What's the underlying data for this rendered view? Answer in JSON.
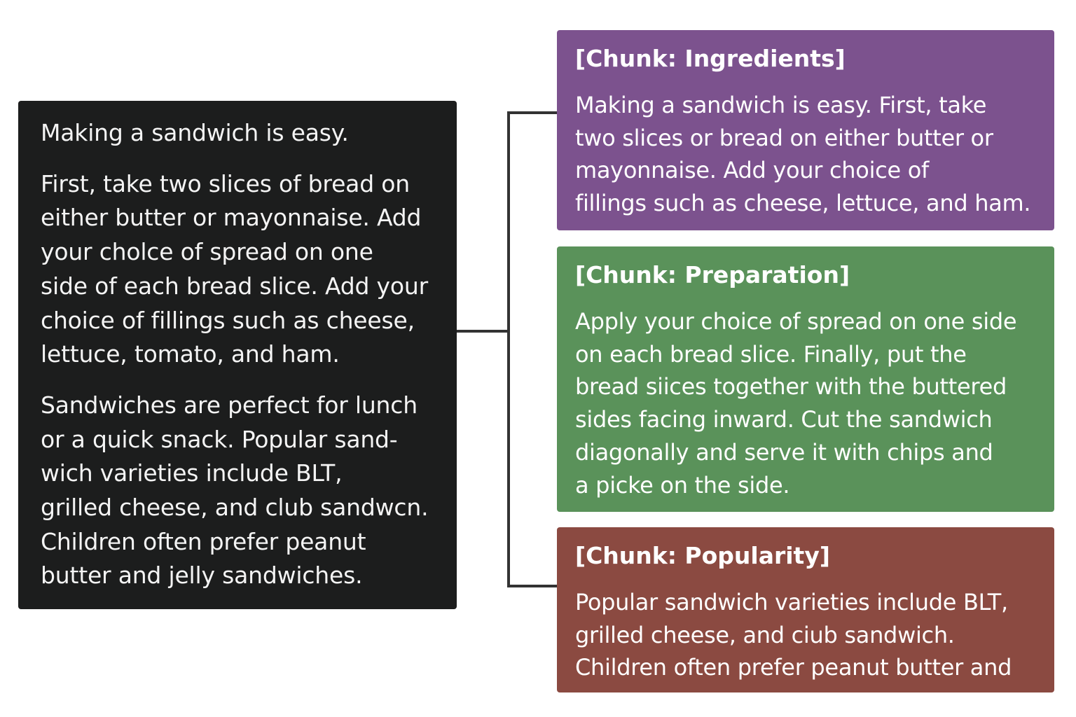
{
  "source": {
    "paragraphs": [
      "Making a sandwich is easy.",
      "First, take two slices of bread on\neither butter or mayonnaise. Add\nyour cholce of spread on one\nside of each bread slice. Add your\nchoice of fillings such as cheese,\nlettuce, tomato, and ham.",
      "Sandwiches are perfect for lunch\nor a quick snack. Popular sand-\nwich varieties include BLT,\ngrilled cheese, and club sandwcn.\nChildren often prefer peanut\nbutter and jelly sandwiches."
    ]
  },
  "chunks": [
    {
      "title": "[Chunk: Ingredients]",
      "body": "Making a sandwich is easy. First, take\ntwo slices or bread on either butter or\nmayonnaise. Add your choice of\nfillings such as cheese, lettuce, and ham.",
      "color": "#7c528e"
    },
    {
      "title": "[Chunk: Preparation]",
      "body": "Apply your choice of spread on one side\non each bread slice. Finally, put the\nbread siices together with the buttered\nsides facing inward. Cut the sandwich\ndiagonally and serve it with chips and\na picke on the side.",
      "color": "#5a925a"
    },
    {
      "title": "[Chunk: Popularity]",
      "body": "Popular sandwich varieties include BLT,\ngrilled cheese, and ciub sandwich.\nChildren often prefer peanut butter and",
      "color": "#8b4a41"
    }
  ],
  "colors": {
    "source_background": "#1c1d1d",
    "connector": "#333333"
  }
}
